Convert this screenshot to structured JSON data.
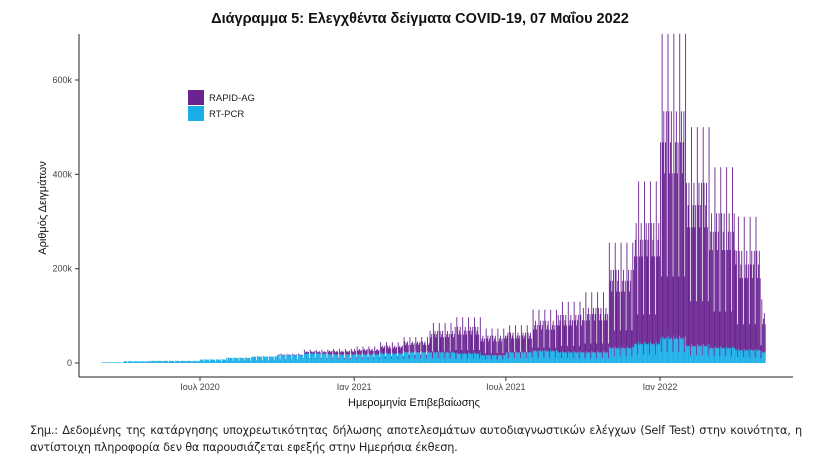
{
  "chart_data": {
    "type": "bar",
    "stacked": true,
    "title": "Διάγραμμα 5: Ελεγχθέντα δείγματα COVID-19, 07 Μαΐου 2022",
    "xlabel": "Ημερομηνία Επιβεβαίωσης",
    "ylabel": "Αριθμός Δειγμάτων",
    "ylim": [
      0,
      700000
    ],
    "yticks": [
      {
        "value": 0,
        "label": "0"
      },
      {
        "value": 200000,
        "label": "200k"
      },
      {
        "value": 400000,
        "label": "400k"
      },
      {
        "value": 600000,
        "label": "600k"
      }
    ],
    "xticks": [
      {
        "month": "2020-07",
        "label": "Ιουλ 2020"
      },
      {
        "month": "2021-01",
        "label": "Ιαν 2021"
      },
      {
        "month": "2021-07",
        "label": "Ιουλ 2021"
      },
      {
        "month": "2022-01",
        "label": "Ιαν 2022"
      }
    ],
    "legend_position": "top-left",
    "months": [
      "2020-03",
      "2020-04",
      "2020-05",
      "2020-06",
      "2020-07",
      "2020-08",
      "2020-09",
      "2020-10",
      "2020-11",
      "2020-12",
      "2021-01",
      "2021-02",
      "2021-03",
      "2021-04",
      "2021-05",
      "2021-06",
      "2021-07",
      "2021-08",
      "2021-09",
      "2021-10",
      "2021-11",
      "2021-12",
      "2022-01",
      "2022-02",
      "2022-03",
      "2022-04",
      "2022-05"
    ],
    "series": [
      {
        "name": "RAPID-AG",
        "color": "#6a2492",
        "peak_daily": [
          0,
          0,
          0,
          0,
          0,
          0,
          0,
          2000,
          6000,
          10000,
          15000,
          22000,
          30000,
          60000,
          75000,
          55000,
          55000,
          85000,
          105000,
          125000,
          220000,
          340000,
          640000,
          460000,
          380000,
          280000,
          110000
        ]
      },
      {
        "name": "RT-PCR",
        "color": "#1aaee8",
        "peak_daily": [
          1500,
          4000,
          5000,
          5000,
          8000,
          12000,
          15000,
          18000,
          22000,
          20000,
          20000,
          22000,
          25000,
          25000,
          22000,
          18000,
          25000,
          28000,
          25000,
          25000,
          35000,
          45000,
          58000,
          40000,
          35000,
          30000,
          25000
        ]
      }
    ]
  },
  "note": "Σημ.: Δεδομένης της κατάργησης υποχρεωτικότητας δήλωσης αποτελεσμάτων αυτοδιαγνωστικών ελέγχων (Self Test) στην κοινότητα, η αντίστοιχη πληροφορία δεν θα παρουσιάζεται εφεξής στην Ημερήσια έκθεση."
}
